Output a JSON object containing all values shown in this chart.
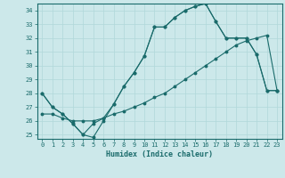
{
  "xlabel": "Humidex (Indice chaleur)",
  "background_color": "#cce8ea",
  "line_color": "#1a6b6b",
  "grid_color": "#b0d8da",
  "xlim": [
    -0.5,
    23.5
  ],
  "ylim": [
    24.7,
    34.5
  ],
  "yticks": [
    25,
    26,
    27,
    28,
    29,
    30,
    31,
    32,
    33,
    34
  ],
  "xticks": [
    0,
    1,
    2,
    3,
    4,
    5,
    6,
    7,
    8,
    9,
    10,
    11,
    12,
    13,
    14,
    15,
    16,
    17,
    18,
    19,
    20,
    21,
    22,
    23
  ],
  "curve1_x": [
    0,
    1,
    2,
    3,
    4,
    5,
    6,
    7,
    8,
    9,
    10,
    11,
    12,
    13,
    14,
    15,
    16,
    17,
    18,
    19,
    20,
    21,
    22,
    23
  ],
  "curve1_y": [
    28.0,
    27.0,
    26.5,
    25.8,
    25.0,
    24.8,
    26.0,
    27.2,
    28.5,
    29.5,
    30.7,
    32.8,
    32.8,
    33.5,
    34.0,
    34.3,
    34.5,
    33.2,
    32.0,
    32.0,
    32.0,
    30.8,
    28.2,
    28.2
  ],
  "curve2_x": [
    0,
    1,
    2,
    3,
    4,
    5,
    6,
    7,
    8,
    9,
    10,
    11,
    12,
    13,
    14,
    15,
    16,
    17,
    18,
    19,
    20,
    21,
    22,
    23
  ],
  "curve2_y": [
    28.0,
    27.0,
    26.5,
    25.8,
    25.0,
    25.8,
    26.2,
    27.2,
    28.5,
    29.5,
    30.7,
    32.8,
    32.8,
    33.5,
    34.0,
    34.3,
    34.5,
    33.2,
    32.0,
    32.0,
    32.0,
    30.8,
    28.2,
    28.2
  ],
  "curve3_x": [
    0,
    1,
    2,
    3,
    4,
    5,
    6,
    7,
    8,
    9,
    10,
    11,
    12,
    13,
    14,
    15,
    16,
    17,
    18,
    19,
    20,
    21,
    22,
    23
  ],
  "curve3_y": [
    26.5,
    26.5,
    26.2,
    26.0,
    26.0,
    26.0,
    26.2,
    26.5,
    26.7,
    27.0,
    27.3,
    27.7,
    28.0,
    28.5,
    29.0,
    29.5,
    30.0,
    30.5,
    31.0,
    31.5,
    31.8,
    32.0,
    32.2,
    28.2
  ]
}
